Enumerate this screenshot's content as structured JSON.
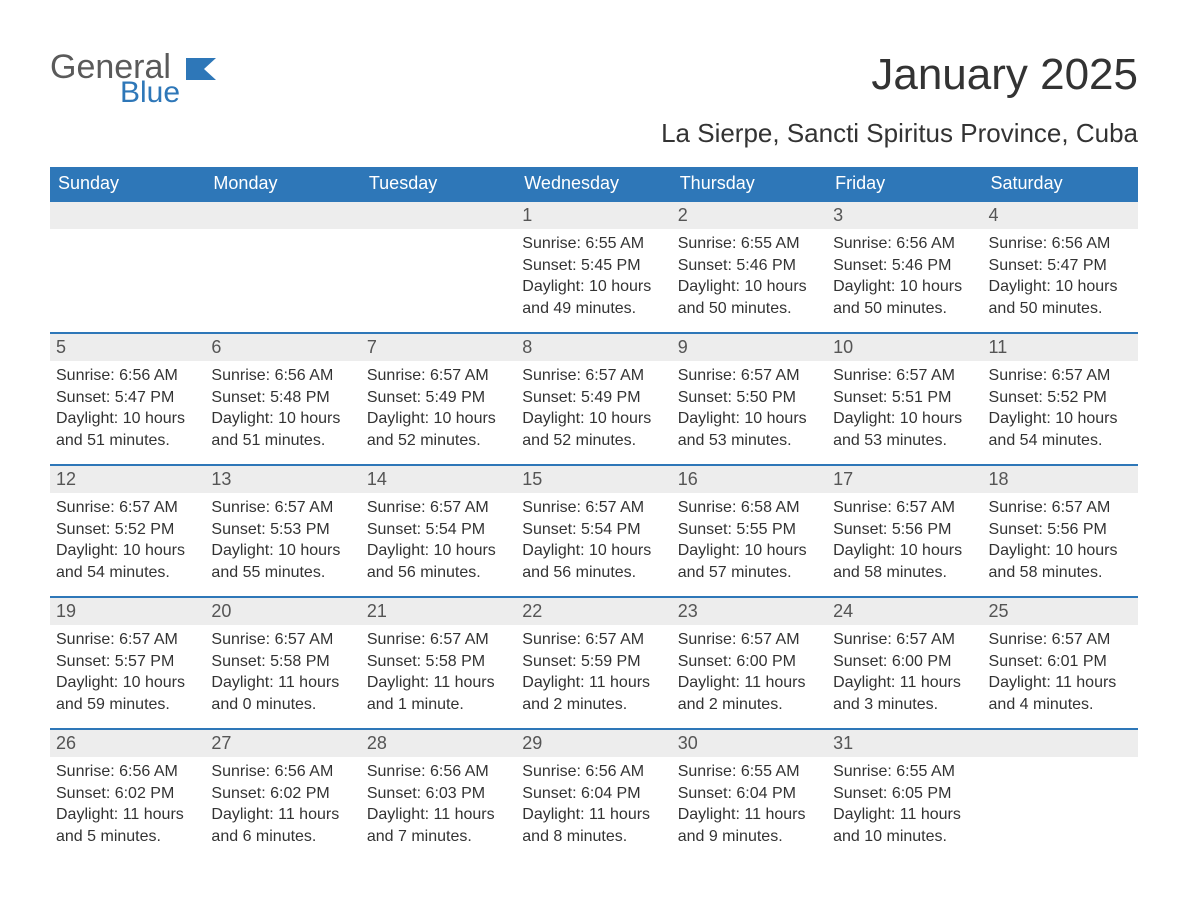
{
  "brand": {
    "word1": "General",
    "word2": "Blue",
    "flag_color": "#2e77b8",
    "text_gray": "#5a5a5a"
  },
  "title": "January 2025",
  "location": "La Sierpe, Sancti Spiritus Province, Cuba",
  "colors": {
    "header_bg": "#2e77b8",
    "header_text": "#ffffff",
    "daynum_bg": "#ededed",
    "daynum_border": "#2e77b8",
    "body_text": "#333333",
    "page_bg": "#ffffff"
  },
  "weekdays": [
    "Sunday",
    "Monday",
    "Tuesday",
    "Wednesday",
    "Thursday",
    "Friday",
    "Saturday"
  ],
  "weeks": [
    [
      {
        "n": "",
        "sunrise": "",
        "sunset": "",
        "daylight1": "",
        "daylight2": ""
      },
      {
        "n": "",
        "sunrise": "",
        "sunset": "",
        "daylight1": "",
        "daylight2": ""
      },
      {
        "n": "",
        "sunrise": "",
        "sunset": "",
        "daylight1": "",
        "daylight2": ""
      },
      {
        "n": "1",
        "sunrise": "Sunrise: 6:55 AM",
        "sunset": "Sunset: 5:45 PM",
        "daylight1": "Daylight: 10 hours",
        "daylight2": "and 49 minutes."
      },
      {
        "n": "2",
        "sunrise": "Sunrise: 6:55 AM",
        "sunset": "Sunset: 5:46 PM",
        "daylight1": "Daylight: 10 hours",
        "daylight2": "and 50 minutes."
      },
      {
        "n": "3",
        "sunrise": "Sunrise: 6:56 AM",
        "sunset": "Sunset: 5:46 PM",
        "daylight1": "Daylight: 10 hours",
        "daylight2": "and 50 minutes."
      },
      {
        "n": "4",
        "sunrise": "Sunrise: 6:56 AM",
        "sunset": "Sunset: 5:47 PM",
        "daylight1": "Daylight: 10 hours",
        "daylight2": "and 50 minutes."
      }
    ],
    [
      {
        "n": "5",
        "sunrise": "Sunrise: 6:56 AM",
        "sunset": "Sunset: 5:47 PM",
        "daylight1": "Daylight: 10 hours",
        "daylight2": "and 51 minutes."
      },
      {
        "n": "6",
        "sunrise": "Sunrise: 6:56 AM",
        "sunset": "Sunset: 5:48 PM",
        "daylight1": "Daylight: 10 hours",
        "daylight2": "and 51 minutes."
      },
      {
        "n": "7",
        "sunrise": "Sunrise: 6:57 AM",
        "sunset": "Sunset: 5:49 PM",
        "daylight1": "Daylight: 10 hours",
        "daylight2": "and 52 minutes."
      },
      {
        "n": "8",
        "sunrise": "Sunrise: 6:57 AM",
        "sunset": "Sunset: 5:49 PM",
        "daylight1": "Daylight: 10 hours",
        "daylight2": "and 52 minutes."
      },
      {
        "n": "9",
        "sunrise": "Sunrise: 6:57 AM",
        "sunset": "Sunset: 5:50 PM",
        "daylight1": "Daylight: 10 hours",
        "daylight2": "and 53 minutes."
      },
      {
        "n": "10",
        "sunrise": "Sunrise: 6:57 AM",
        "sunset": "Sunset: 5:51 PM",
        "daylight1": "Daylight: 10 hours",
        "daylight2": "and 53 minutes."
      },
      {
        "n": "11",
        "sunrise": "Sunrise: 6:57 AM",
        "sunset": "Sunset: 5:52 PM",
        "daylight1": "Daylight: 10 hours",
        "daylight2": "and 54 minutes."
      }
    ],
    [
      {
        "n": "12",
        "sunrise": "Sunrise: 6:57 AM",
        "sunset": "Sunset: 5:52 PM",
        "daylight1": "Daylight: 10 hours",
        "daylight2": "and 54 minutes."
      },
      {
        "n": "13",
        "sunrise": "Sunrise: 6:57 AM",
        "sunset": "Sunset: 5:53 PM",
        "daylight1": "Daylight: 10 hours",
        "daylight2": "and 55 minutes."
      },
      {
        "n": "14",
        "sunrise": "Sunrise: 6:57 AM",
        "sunset": "Sunset: 5:54 PM",
        "daylight1": "Daylight: 10 hours",
        "daylight2": "and 56 minutes."
      },
      {
        "n": "15",
        "sunrise": "Sunrise: 6:57 AM",
        "sunset": "Sunset: 5:54 PM",
        "daylight1": "Daylight: 10 hours",
        "daylight2": "and 56 minutes."
      },
      {
        "n": "16",
        "sunrise": "Sunrise: 6:58 AM",
        "sunset": "Sunset: 5:55 PM",
        "daylight1": "Daylight: 10 hours",
        "daylight2": "and 57 minutes."
      },
      {
        "n": "17",
        "sunrise": "Sunrise: 6:57 AM",
        "sunset": "Sunset: 5:56 PM",
        "daylight1": "Daylight: 10 hours",
        "daylight2": "and 58 minutes."
      },
      {
        "n": "18",
        "sunrise": "Sunrise: 6:57 AM",
        "sunset": "Sunset: 5:56 PM",
        "daylight1": "Daylight: 10 hours",
        "daylight2": "and 58 minutes."
      }
    ],
    [
      {
        "n": "19",
        "sunrise": "Sunrise: 6:57 AM",
        "sunset": "Sunset: 5:57 PM",
        "daylight1": "Daylight: 10 hours",
        "daylight2": "and 59 minutes."
      },
      {
        "n": "20",
        "sunrise": "Sunrise: 6:57 AM",
        "sunset": "Sunset: 5:58 PM",
        "daylight1": "Daylight: 11 hours",
        "daylight2": "and 0 minutes."
      },
      {
        "n": "21",
        "sunrise": "Sunrise: 6:57 AM",
        "sunset": "Sunset: 5:58 PM",
        "daylight1": "Daylight: 11 hours",
        "daylight2": "and 1 minute."
      },
      {
        "n": "22",
        "sunrise": "Sunrise: 6:57 AM",
        "sunset": "Sunset: 5:59 PM",
        "daylight1": "Daylight: 11 hours",
        "daylight2": "and 2 minutes."
      },
      {
        "n": "23",
        "sunrise": "Sunrise: 6:57 AM",
        "sunset": "Sunset: 6:00 PM",
        "daylight1": "Daylight: 11 hours",
        "daylight2": "and 2 minutes."
      },
      {
        "n": "24",
        "sunrise": "Sunrise: 6:57 AM",
        "sunset": "Sunset: 6:00 PM",
        "daylight1": "Daylight: 11 hours",
        "daylight2": "and 3 minutes."
      },
      {
        "n": "25",
        "sunrise": "Sunrise: 6:57 AM",
        "sunset": "Sunset: 6:01 PM",
        "daylight1": "Daylight: 11 hours",
        "daylight2": "and 4 minutes."
      }
    ],
    [
      {
        "n": "26",
        "sunrise": "Sunrise: 6:56 AM",
        "sunset": "Sunset: 6:02 PM",
        "daylight1": "Daylight: 11 hours",
        "daylight2": "and 5 minutes."
      },
      {
        "n": "27",
        "sunrise": "Sunrise: 6:56 AM",
        "sunset": "Sunset: 6:02 PM",
        "daylight1": "Daylight: 11 hours",
        "daylight2": "and 6 minutes."
      },
      {
        "n": "28",
        "sunrise": "Sunrise: 6:56 AM",
        "sunset": "Sunset: 6:03 PM",
        "daylight1": "Daylight: 11 hours",
        "daylight2": "and 7 minutes."
      },
      {
        "n": "29",
        "sunrise": "Sunrise: 6:56 AM",
        "sunset": "Sunset: 6:04 PM",
        "daylight1": "Daylight: 11 hours",
        "daylight2": "and 8 minutes."
      },
      {
        "n": "30",
        "sunrise": "Sunrise: 6:55 AM",
        "sunset": "Sunset: 6:04 PM",
        "daylight1": "Daylight: 11 hours",
        "daylight2": "and 9 minutes."
      },
      {
        "n": "31",
        "sunrise": "Sunrise: 6:55 AM",
        "sunset": "Sunset: 6:05 PM",
        "daylight1": "Daylight: 11 hours",
        "daylight2": "and 10 minutes."
      },
      {
        "n": "",
        "sunrise": "",
        "sunset": "",
        "daylight1": "",
        "daylight2": ""
      }
    ]
  ]
}
